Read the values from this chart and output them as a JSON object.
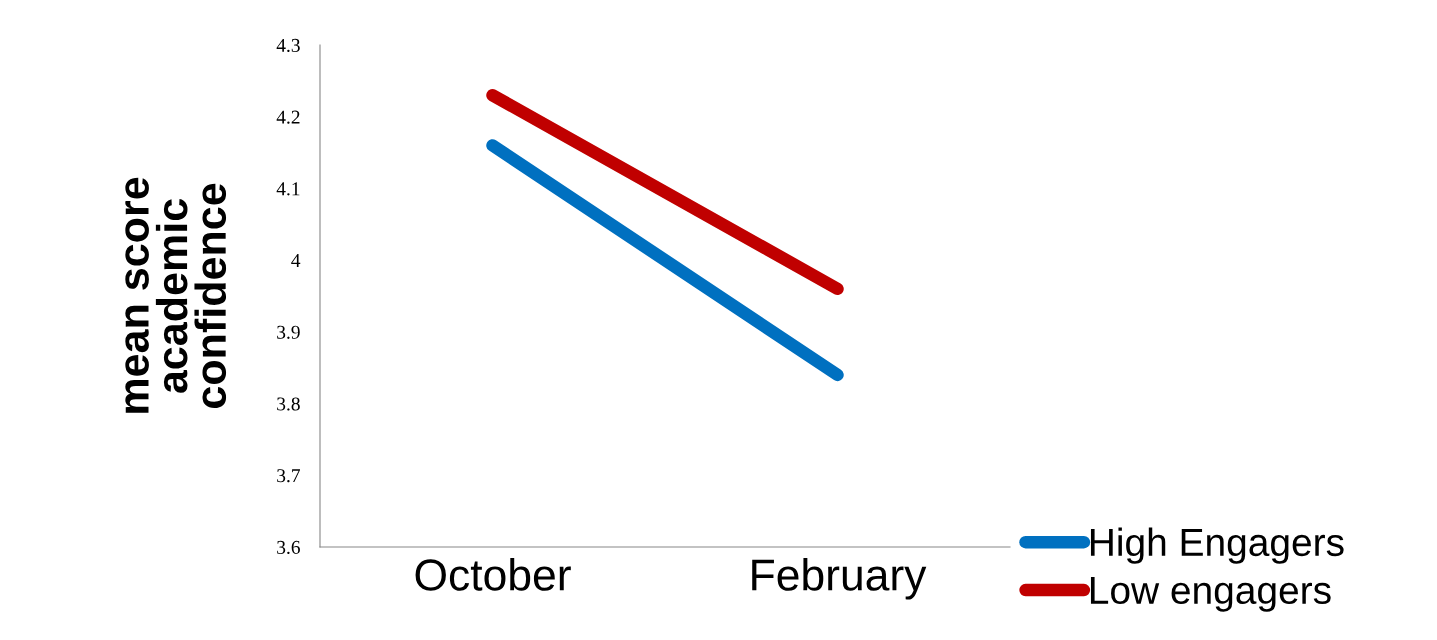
{
  "chart_data": {
    "type": "line",
    "ylabel": "mean score\nacademic\nconfidence",
    "categories": [
      "October",
      "February"
    ],
    "series": [
      {
        "name": "High Engagers",
        "color": "#0070c0",
        "values": [
          4.16,
          3.84
        ]
      },
      {
        "name": "Low engagers",
        "color": "#c00000",
        "values": [
          4.23,
          3.96
        ]
      }
    ],
    "ylim": [
      3.6,
      4.3
    ],
    "yticks": [
      {
        "value": 3.6,
        "label": "3.6"
      },
      {
        "value": 3.7,
        "label": "3.7"
      },
      {
        "value": 3.8,
        "label": "3.8"
      },
      {
        "value": 3.9,
        "label": "3.9"
      },
      {
        "value": 4,
        "label": "4"
      },
      {
        "value": 4.1,
        "label": "4.1"
      },
      {
        "value": 4.2,
        "label": "4.2"
      },
      {
        "value": 4.3,
        "label": "4.3"
      }
    ],
    "grid": false,
    "legend": "bottom right",
    "line_style": "solid"
  }
}
